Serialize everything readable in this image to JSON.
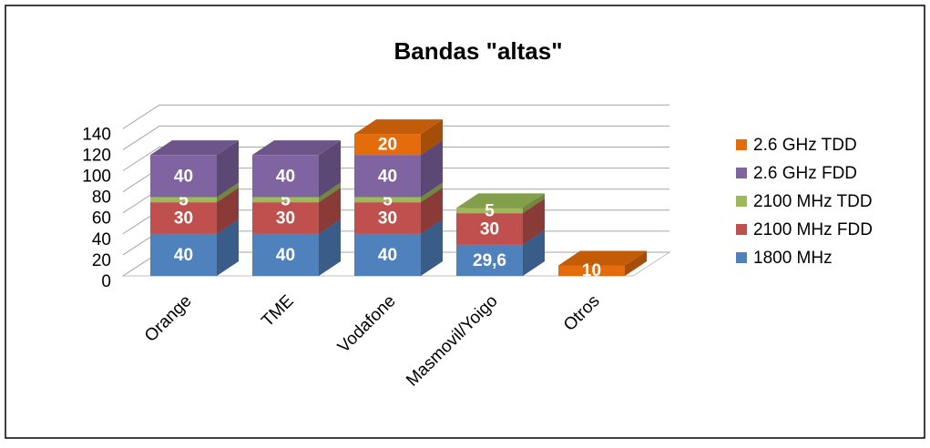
{
  "chart_data": {
    "type": "bar3d_stacked",
    "title": "Bandas \"altas\"",
    "categories": [
      "Orange",
      "TME",
      "Vodafone",
      "Masmovil/Yoigo",
      "Otros"
    ],
    "series": [
      {
        "name": "1800 MHz",
        "color": "#4f81bd",
        "values": [
          40,
          40,
          40,
          29.6,
          null
        ],
        "value_labels": [
          "40",
          "40",
          "40",
          "29,6",
          null
        ]
      },
      {
        "name": "2100 MHz FDD",
        "color": "#c0504d",
        "values": [
          30,
          30,
          30,
          30,
          null
        ]
      },
      {
        "name": "2100 MHz TDD",
        "color": "#9bbb59",
        "values": [
          5,
          5,
          5,
          5,
          null
        ]
      },
      {
        "name": "2.6 GHz FDD",
        "color": "#8064a2",
        "values": [
          40,
          40,
          40,
          null,
          null
        ]
      },
      {
        "name": "2.6 GHz TDD",
        "color": "#e46c0a",
        "values": [
          null,
          null,
          20,
          null,
          10
        ]
      }
    ],
    "ylim": [
      0,
      140
    ],
    "yticks": [
      0,
      20,
      40,
      60,
      80,
      100,
      120,
      140
    ],
    "grid": true,
    "legend": "right"
  }
}
